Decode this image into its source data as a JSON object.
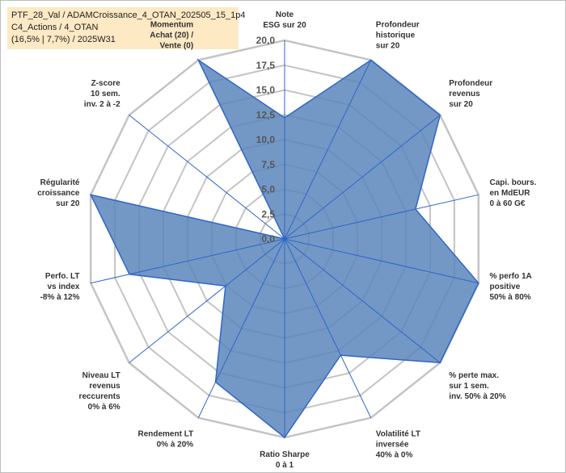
{
  "header": {
    "line1": "PTF_28_Val / ADAMCroissance_4_OTAN_202505_15_1p4",
    "line2": "C4_Actions / 4_OTAN",
    "line3": "(16,5% | 7,7%) / 2025W31"
  },
  "colors": {
    "fill": "#5b86bb",
    "stroke": "#2f66c8",
    "grid": "#c4c4c4",
    "header_bg": "#fde9c4"
  },
  "chart_data": {
    "type": "radar",
    "rmax": 20,
    "rmin": 0,
    "tick_values": [
      0,
      2.5,
      5,
      7.5,
      10,
      12.5,
      15,
      17.5,
      20
    ],
    "tick_labels": [
      "0,0",
      "2,5",
      "5,0",
      "7,5",
      "10,0",
      "12,5",
      "15,0",
      "17,5",
      "20,0"
    ],
    "axes": [
      {
        "lines": [
          "Note",
          "ESG sur 20"
        ]
      },
      {
        "lines": [
          "Profondeur",
          "historique",
          "sur 20"
        ]
      },
      {
        "lines": [
          "Profondeur",
          "revenus",
          "sur 20"
        ]
      },
      {
        "lines": [
          "Capi. bours.",
          "en MdEUR",
          "0 à 60 G€"
        ]
      },
      {
        "lines": [
          "% perfo 1A",
          "positive",
          "50% à 80%"
        ]
      },
      {
        "lines": [
          "% perte max.",
          "sur 1 sem.",
          "inv. 50% à 20%"
        ]
      },
      {
        "lines": [
          "Volatilité LT",
          "inversée",
          "40% à 0%"
        ]
      },
      {
        "lines": [
          "Ratio Sharpe",
          "0 à 1"
        ]
      },
      {
        "lines": [
          "Rendement LT",
          "0% à 20%"
        ]
      },
      {
        "lines": [
          "Niveau LT",
          "revenus",
          "reccurents",
          "0% à 6%"
        ]
      },
      {
        "lines": [
          "Perfo. LT",
          "vs index",
          "-8% à 12%"
        ]
      },
      {
        "lines": [
          "Régularité",
          "croissance",
          "sur 20"
        ]
      },
      {
        "lines": [
          "Z-score",
          "10 sem.",
          "inv. 2 à -2"
        ]
      },
      {
        "lines": [
          "Momentum",
          "Achat (20) /",
          "Vente (0)"
        ],
        "first_line_highlight": true
      }
    ],
    "series": [
      {
        "values": [
          12.2,
          20,
          20,
          13.5,
          20,
          20,
          13,
          20,
          16,
          7.6,
          16,
          20,
          0,
          20
        ]
      }
    ],
    "highlight_color": "#b98a2c"
  }
}
